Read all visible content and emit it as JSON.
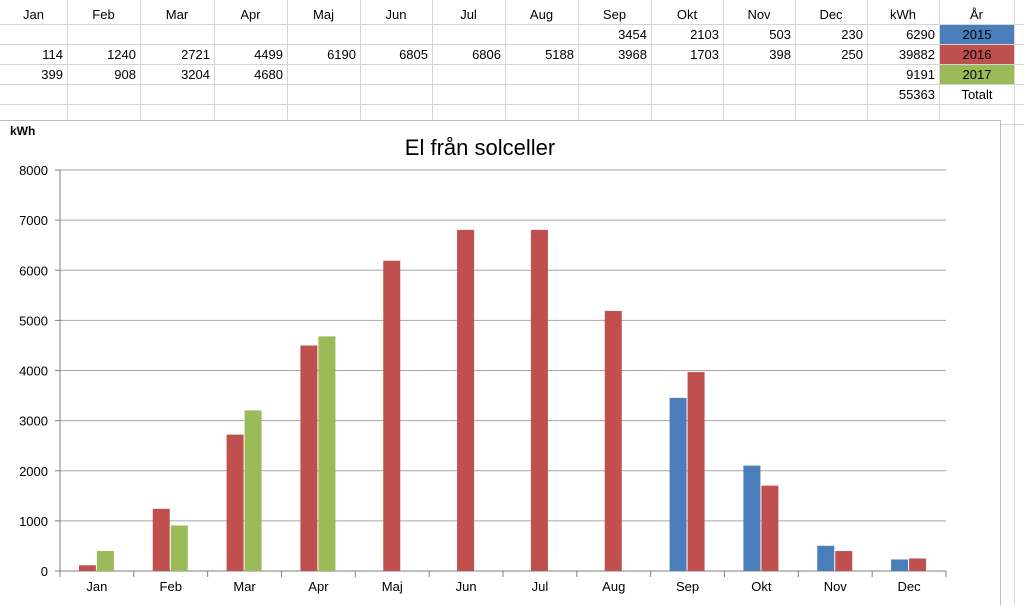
{
  "sheet": {
    "header": [
      "Jan",
      "Feb",
      "Mar",
      "Apr",
      "Maj",
      "Jun",
      "Jul",
      "Aug",
      "Sep",
      "Okt",
      "Nov",
      "Dec",
      "kWh",
      "År"
    ],
    "rows": [
      {
        "months": [
          "",
          "",
          "",
          "",
          "",
          "",
          "",
          "",
          "3454",
          "2103",
          "503",
          "230"
        ],
        "kwh": "6290",
        "year": "2015"
      },
      {
        "months": [
          "114",
          "1240",
          "2721",
          "4499",
          "6190",
          "6805",
          "6806",
          "5188",
          "3968",
          "1703",
          "398",
          "250"
        ],
        "kwh": "39882",
        "year": "2016"
      },
      {
        "months": [
          "399",
          "908",
          "3204",
          "4680",
          "",
          "",
          "",
          "",
          "",
          "",
          "",
          ""
        ],
        "kwh": "9191",
        "year": "2017"
      },
      {
        "months": [
          "",
          "",
          "",
          "",
          "",
          "",
          "",
          "",
          "",
          "",
          "",
          ""
        ],
        "kwh": "55363",
        "year": "Totalt"
      }
    ],
    "year_colors": {
      "2015": "#4a7ebb",
      "2016": "#c0504d",
      "2017": "#9bbb59"
    }
  },
  "chart_data": {
    "type": "bar",
    "title": "El från solceller",
    "ylabel": "kWh",
    "xlabel": "",
    "categories": [
      "Jan",
      "Feb",
      "Mar",
      "Apr",
      "Maj",
      "Jun",
      "Jul",
      "Aug",
      "Sep",
      "Okt",
      "Nov",
      "Dec"
    ],
    "series": [
      {
        "name": "2015",
        "color": "#4a7ebb",
        "values": [
          null,
          null,
          null,
          null,
          null,
          null,
          null,
          null,
          3454,
          2103,
          503,
          230
        ]
      },
      {
        "name": "2016",
        "color": "#c0504d",
        "values": [
          114,
          1240,
          2721,
          4499,
          6190,
          6805,
          6806,
          5188,
          3968,
          1703,
          398,
          250
        ]
      },
      {
        "name": "2017",
        "color": "#9bbb59",
        "values": [
          399,
          908,
          3204,
          4680,
          null,
          null,
          null,
          null,
          null,
          null,
          null,
          null
        ]
      }
    ],
    "ylim": [
      0,
      8000
    ],
    "yticks": [
      0,
      1000,
      2000,
      3000,
      4000,
      5000,
      6000,
      7000,
      8000
    ],
    "grid": true,
    "legend": "none"
  }
}
